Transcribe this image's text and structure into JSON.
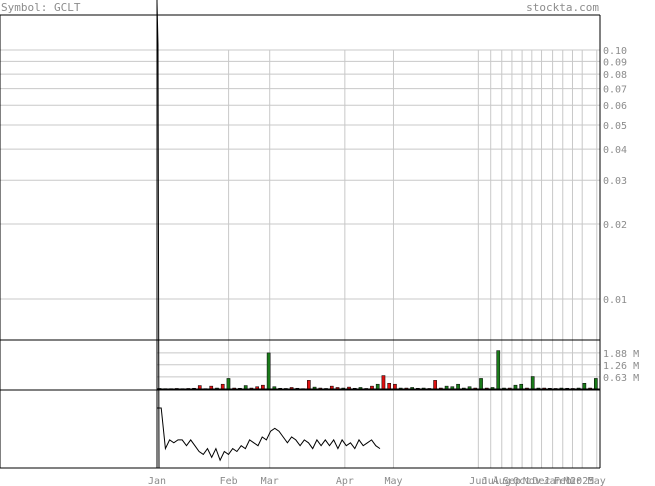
{
  "header": {
    "symbol_label": "Symbol: GCLT",
    "site_label": "stockta.com"
  },
  "colors": {
    "background": "#ffffff",
    "grid": "#c8c8c8",
    "frame": "#000000",
    "label": "#8c8c8c",
    "price_line": "#000000",
    "volume_up": "#1a7a1a",
    "volume_down": "#dd1111"
  },
  "chart_data": [
    {
      "type": "line",
      "panel": "price",
      "scale": "log",
      "ylim": [
        0.006,
        0.106
      ],
      "y_ticks": [
        {
          "value": 0.1,
          "label": "0.10"
        },
        {
          "value": 0.09,
          "label": "0.09"
        },
        {
          "value": 0.08,
          "label": "0.08"
        },
        {
          "value": 0.07,
          "label": "0.07"
        },
        {
          "value": 0.06,
          "label": "0.06"
        },
        {
          "value": 0.05,
          "label": "0.05"
        },
        {
          "value": 0.04,
          "label": "0.04"
        },
        {
          "value": 0.03,
          "label": "0.03"
        },
        {
          "value": 0.02,
          "label": "0.02"
        },
        {
          "value": 0.01,
          "label": "0.01"
        }
      ],
      "series": [
        {
          "values": [
            0.3,
            0.01
          ]
        }
      ]
    },
    {
      "type": "bar",
      "panel": "volume",
      "ylim": [
        0,
        2.5
      ],
      "y_ticks": [
        {
          "value": 1.88,
          "label": "1.88 M"
        },
        {
          "value": 1.26,
          "label": "1.26 M"
        },
        {
          "value": 0.63,
          "label": "0.63 M"
        }
      ],
      "bars": [
        {
          "i": 0,
          "v": 0.03,
          "up": true
        },
        {
          "i": 1,
          "v": 0.02,
          "up": false
        },
        {
          "i": 2,
          "v": 0.02,
          "up": true
        },
        {
          "i": 3,
          "v": 0.03,
          "up": false
        },
        {
          "i": 4,
          "v": 0.02,
          "up": true
        },
        {
          "i": 5,
          "v": 0.03,
          "up": false
        },
        {
          "i": 6,
          "v": 0.04,
          "up": false
        },
        {
          "i": 7,
          "v": 0.18,
          "up": false
        },
        {
          "i": 8,
          "v": 0.02,
          "up": true
        },
        {
          "i": 9,
          "v": 0.15,
          "up": false
        },
        {
          "i": 10,
          "v": 0.05,
          "up": true
        },
        {
          "i": 11,
          "v": 0.25,
          "up": false
        },
        {
          "i": 12,
          "v": 0.55,
          "up": true
        },
        {
          "i": 13,
          "v": 0.05,
          "up": false
        },
        {
          "i": 14,
          "v": 0.04,
          "up": true
        },
        {
          "i": 15,
          "v": 0.18,
          "up": true
        },
        {
          "i": 16,
          "v": 0.05,
          "up": false
        },
        {
          "i": 17,
          "v": 0.12,
          "up": false
        },
        {
          "i": 18,
          "v": 0.2,
          "up": false
        },
        {
          "i": 19,
          "v": 1.88,
          "up": true
        },
        {
          "i": 20,
          "v": 0.12,
          "up": true
        },
        {
          "i": 21,
          "v": 0.04,
          "up": false
        },
        {
          "i": 22,
          "v": 0.03,
          "up": true
        },
        {
          "i": 23,
          "v": 0.08,
          "up": false
        },
        {
          "i": 24,
          "v": 0.04,
          "up": false
        },
        {
          "i": 25,
          "v": 0.02,
          "up": true
        },
        {
          "i": 26,
          "v": 0.45,
          "up": false
        },
        {
          "i": 27,
          "v": 0.1,
          "up": true
        },
        {
          "i": 28,
          "v": 0.05,
          "up": false
        },
        {
          "i": 29,
          "v": 0.03,
          "up": true
        },
        {
          "i": 30,
          "v": 0.15,
          "up": false
        },
        {
          "i": 31,
          "v": 0.08,
          "up": false
        },
        {
          "i": 32,
          "v": 0.05,
          "up": true
        },
        {
          "i": 33,
          "v": 0.1,
          "up": false
        },
        {
          "i": 34,
          "v": 0.04,
          "up": true
        },
        {
          "i": 35,
          "v": 0.08,
          "up": true
        },
        {
          "i": 36,
          "v": 0.03,
          "up": false
        },
        {
          "i": 37,
          "v": 0.15,
          "up": false
        },
        {
          "i": 38,
          "v": 0.25,
          "up": true
        },
        {
          "i": 39,
          "v": 0.7,
          "up": false
        },
        {
          "i": 40,
          "v": 0.3,
          "up": false
        },
        {
          "i": 41,
          "v": 0.25,
          "up": false
        },
        {
          "i": 42,
          "v": 0.05,
          "up": true
        },
        {
          "i": 43,
          "v": 0.05,
          "up": false
        },
        {
          "i": 44,
          "v": 0.08,
          "up": true
        },
        {
          "i": 45,
          "v": 0.04,
          "up": false
        },
        {
          "i": 46,
          "v": 0.05,
          "up": true
        },
        {
          "i": 47,
          "v": 0.03,
          "up": false
        },
        {
          "i": 48,
          "v": 0.45,
          "up": false
        },
        {
          "i": 49,
          "v": 0.05,
          "up": false
        },
        {
          "i": 50,
          "v": 0.15,
          "up": true
        },
        {
          "i": 51,
          "v": 0.12,
          "up": true
        },
        {
          "i": 52,
          "v": 0.25,
          "up": true
        },
        {
          "i": 53,
          "v": 0.05,
          "up": true
        },
        {
          "i": 54,
          "v": 0.12,
          "up": true
        },
        {
          "i": 55,
          "v": 0.05,
          "up": false
        },
        {
          "i": 56,
          "v": 0.55,
          "up": true
        },
        {
          "i": 57,
          "v": 0.05,
          "up": false
        },
        {
          "i": 58,
          "v": 0.08,
          "up": true
        },
        {
          "i": 59,
          "v": 2.0,
          "up": true
        },
        {
          "i": 60,
          "v": 0.05,
          "up": true
        },
        {
          "i": 61,
          "v": 0.05,
          "up": false
        },
        {
          "i": 62,
          "v": 0.2,
          "up": true
        },
        {
          "i": 63,
          "v": 0.25,
          "up": true
        },
        {
          "i": 64,
          "v": 0.05,
          "up": false
        },
        {
          "i": 65,
          "v": 0.65,
          "up": true
        },
        {
          "i": 66,
          "v": 0.05,
          "up": true
        },
        {
          "i": 67,
          "v": 0.05,
          "up": false
        },
        {
          "i": 68,
          "v": 0.04,
          "up": true
        },
        {
          "i": 69,
          "v": 0.03,
          "up": false
        },
        {
          "i": 70,
          "v": 0.05,
          "up": true
        },
        {
          "i": 71,
          "v": 0.04,
          "up": true
        },
        {
          "i": 72,
          "v": 0.03,
          "up": false
        },
        {
          "i": 73,
          "v": 0.05,
          "up": true
        },
        {
          "i": 74,
          "v": 0.3,
          "up": true
        },
        {
          "i": 75,
          "v": 0.05,
          "up": false
        },
        {
          "i": 76,
          "v": 0.55,
          "up": true
        }
      ],
      "bar_count": 77
    },
    {
      "type": "line",
      "panel": "indicator",
      "ylim": [
        0,
        100
      ],
      "series": [
        {
          "values": [
            100,
            100,
            30,
            45,
            40,
            45,
            45,
            35,
            45,
            35,
            25,
            20,
            30,
            15,
            30,
            10,
            25,
            20,
            30,
            25,
            35,
            30,
            45,
            40,
            35,
            50,
            45,
            60,
            65,
            60,
            50,
            40,
            50,
            45,
            35,
            45,
            40,
            30,
            45,
            35,
            45,
            35,
            45,
            30,
            45,
            35,
            40,
            30,
            45,
            35,
            40,
            45,
            35,
            30
          ]
        }
      ]
    }
  ],
  "x_axis": {
    "labels": [
      {
        "label": "Jan",
        "pos": 0.0
      },
      {
        "label": "Feb",
        "pos": 0.162
      },
      {
        "label": "Mar",
        "pos": 0.255
      },
      {
        "label": "Apr",
        "pos": 0.425
      },
      {
        "label": "May",
        "pos": 0.535
      },
      {
        "label": "Jun",
        "pos": 0.727
      },
      {
        "label": "Jul",
        "pos": 0.755
      },
      {
        "label": "Aug",
        "pos": 0.78
      },
      {
        "label": "Sep",
        "pos": 0.803
      },
      {
        "label": "Oct",
        "pos": 0.826
      },
      {
        "label": "Nov",
        "pos": 0.848
      },
      {
        "label": "Dec",
        "pos": 0.87
      },
      {
        "label": "Jan",
        "pos": 0.895
      },
      {
        "label": "Feb",
        "pos": 0.918
      },
      {
        "label": "Mar",
        "pos": 0.94
      },
      {
        "label": "2025",
        "pos": 0.962
      },
      {
        "label": "May",
        "pos": 0.995
      }
    ]
  }
}
